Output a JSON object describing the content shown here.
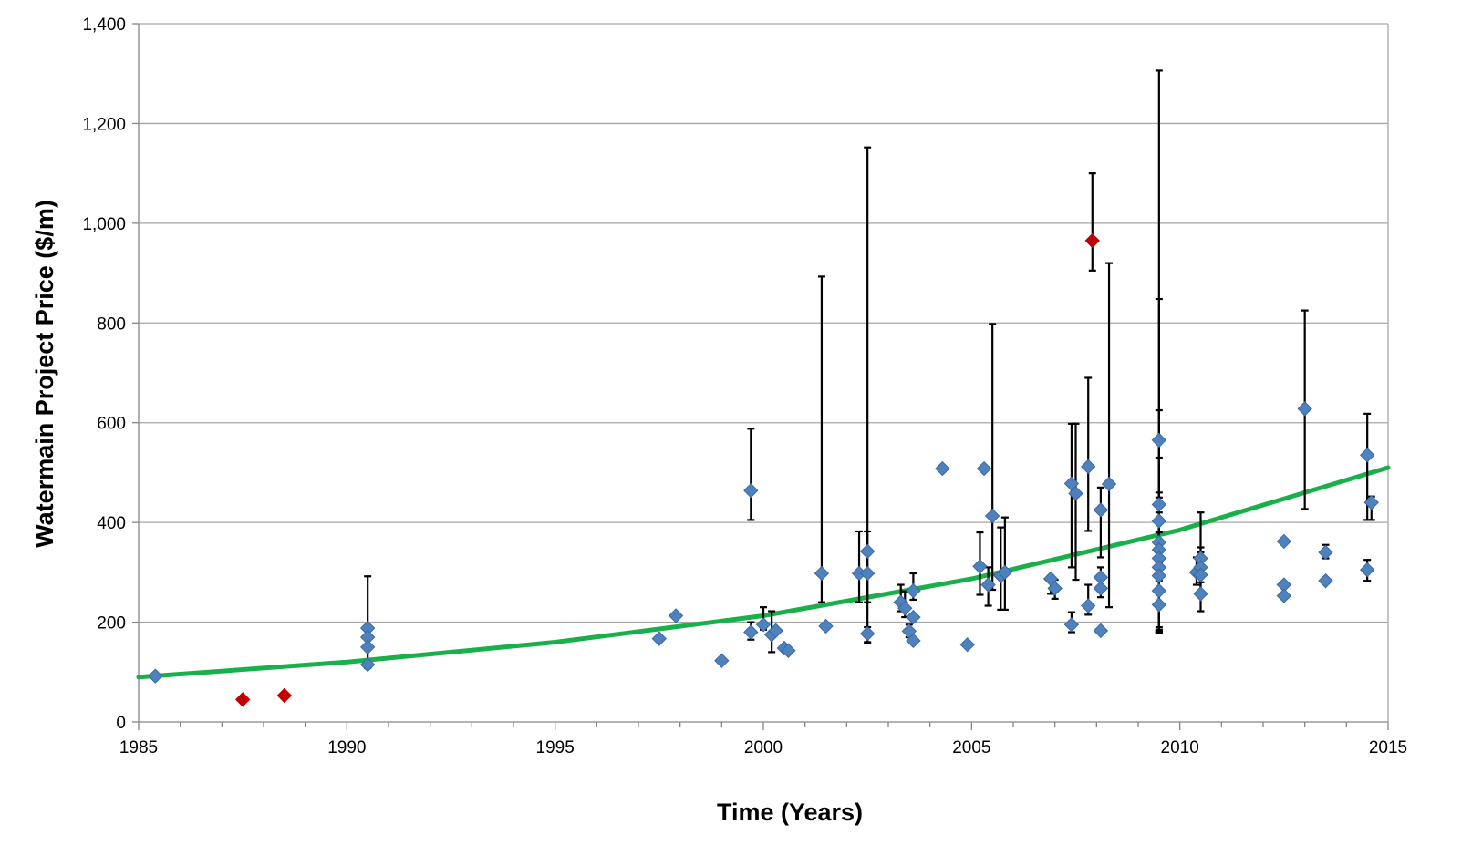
{
  "chart_data": {
    "type": "scatter",
    "title": "",
    "xlabel": "Time (Years)",
    "ylabel": "Watermain Project Price ($/m)",
    "xlim": [
      1985,
      2015
    ],
    "ylim": [
      0,
      1400
    ],
    "x_ticks": [
      1985,
      1990,
      1995,
      2000,
      2005,
      2010,
      2015
    ],
    "y_ticks": [
      0,
      200,
      400,
      600,
      800,
      1000,
      1200,
      1400
    ],
    "y_tick_labels": [
      "0",
      "200",
      "400",
      "600",
      "800",
      "1,000",
      "1,200",
      "1,400"
    ],
    "grid": "horizontal",
    "legend": "none",
    "colors": {
      "blue_points": "#4f81bd",
      "blue_edge": "#3a6aa6",
      "red_points": "#c00000",
      "trend_line": "#19b04a",
      "error_bars": "#000000",
      "grid": "#a6a6a6",
      "axis": "#868686"
    },
    "points": [
      {
        "x": 1985.4,
        "y": 92,
        "color": "blue"
      },
      {
        "x": 1987.5,
        "y": 45,
        "color": "red"
      },
      {
        "x": 1988.5,
        "y": 53,
        "color": "red"
      },
      {
        "x": 1990.5,
        "y": 188,
        "color": "blue"
      },
      {
        "x": 1990.5,
        "y": 170,
        "color": "blue"
      },
      {
        "x": 1990.5,
        "y": 150,
        "color": "blue"
      },
      {
        "x": 1990.5,
        "y": 115,
        "color": "blue",
        "err_low": 108,
        "err_high": 292
      },
      {
        "x": 1997.5,
        "y": 167,
        "color": "blue"
      },
      {
        "x": 1997.9,
        "y": 213,
        "color": "blue"
      },
      {
        "x": 1999.0,
        "y": 123,
        "color": "blue"
      },
      {
        "x": 1999.7,
        "y": 464,
        "color": "blue",
        "err_low": 405,
        "err_high": 588
      },
      {
        "x": 1999.7,
        "y": 180,
        "color": "blue",
        "err_low": 165,
        "err_high": 200
      },
      {
        "x": 2000.0,
        "y": 195,
        "color": "blue",
        "err_low": 185,
        "err_high": 230
      },
      {
        "x": 2000.2,
        "y": 175,
        "color": "blue",
        "err_low": 140,
        "err_high": 222
      },
      {
        "x": 2000.3,
        "y": 183,
        "color": "blue"
      },
      {
        "x": 2000.5,
        "y": 148,
        "color": "blue"
      },
      {
        "x": 2000.6,
        "y": 143,
        "color": "blue"
      },
      {
        "x": 2001.4,
        "y": 298,
        "color": "blue",
        "err_low": 240,
        "err_high": 893
      },
      {
        "x": 2001.5,
        "y": 192,
        "color": "blue"
      },
      {
        "x": 2002.3,
        "y": 298,
        "color": "blue",
        "err_low": 240,
        "err_high": 382
      },
      {
        "x": 2002.5,
        "y": 298,
        "color": "blue",
        "err_low": 240,
        "err_high": 382
      },
      {
        "x": 2002.5,
        "y": 342,
        "color": "blue",
        "err_low": 160,
        "err_high": 1152
      },
      {
        "x": 2002.5,
        "y": 177,
        "color": "blue",
        "err_low": 158,
        "err_high": 190
      },
      {
        "x": 2003.3,
        "y": 240,
        "color": "blue",
        "err_low": 222,
        "err_high": 275
      },
      {
        "x": 2003.4,
        "y": 228,
        "color": "blue",
        "err_low": 210,
        "err_high": 262
      },
      {
        "x": 2003.5,
        "y": 182,
        "color": "blue",
        "err_low": 170,
        "err_high": 195
      },
      {
        "x": 2003.6,
        "y": 263,
        "color": "blue",
        "err_low": 245,
        "err_high": 298
      },
      {
        "x": 2003.6,
        "y": 210,
        "color": "blue"
      },
      {
        "x": 2003.6,
        "y": 163,
        "color": "blue"
      },
      {
        "x": 2004.3,
        "y": 508,
        "color": "blue"
      },
      {
        "x": 2004.9,
        "y": 155,
        "color": "blue"
      },
      {
        "x": 2005.2,
        "y": 312,
        "color": "blue",
        "err_low": 255,
        "err_high": 380
      },
      {
        "x": 2005.3,
        "y": 508,
        "color": "blue"
      },
      {
        "x": 2005.4,
        "y": 275,
        "color": "blue",
        "err_low": 233,
        "err_high": 310
      },
      {
        "x": 2005.5,
        "y": 413,
        "color": "blue",
        "err_low": 265,
        "err_high": 798
      },
      {
        "x": 2005.7,
        "y": 293,
        "color": "blue",
        "err_low": 225,
        "err_high": 390
      },
      {
        "x": 2005.8,
        "y": 300,
        "color": "blue",
        "err_low": 225,
        "err_high": 410
      },
      {
        "x": 2006.9,
        "y": 287,
        "color": "blue",
        "err_low": 257,
        "err_high": 293
      },
      {
        "x": 2007.0,
        "y": 268,
        "color": "blue",
        "err_low": 247,
        "err_high": 285
      },
      {
        "x": 2007.4,
        "y": 478,
        "color": "blue",
        "err_low": 310,
        "err_high": 598
      },
      {
        "x": 2007.5,
        "y": 458,
        "color": "blue",
        "err_low": 285,
        "err_high": 598
      },
      {
        "x": 2007.4,
        "y": 195,
        "color": "blue",
        "err_low": 180,
        "err_high": 220
      },
      {
        "x": 2007.8,
        "y": 512,
        "color": "blue",
        "err_low": 383,
        "err_high": 690
      },
      {
        "x": 2007.8,
        "y": 233,
        "color": "blue",
        "err_low": 215,
        "err_high": 275
      },
      {
        "x": 2007.9,
        "y": 965,
        "color": "red",
        "err_low": 905,
        "err_high": 1100
      },
      {
        "x": 2008.1,
        "y": 425,
        "color": "blue",
        "err_low": 330,
        "err_high": 470
      },
      {
        "x": 2008.1,
        "y": 290,
        "color": "blue",
        "err_low": 250,
        "err_high": 310
      },
      {
        "x": 2008.1,
        "y": 268,
        "color": "blue"
      },
      {
        "x": 2008.1,
        "y": 183,
        "color": "blue"
      },
      {
        "x": 2008.3,
        "y": 477,
        "color": "blue",
        "err_low": 230,
        "err_high": 920
      },
      {
        "x": 2009.5,
        "y": 565,
        "color": "blue",
        "err_low": 450,
        "err_high": 1306
      },
      {
        "x": 2009.5,
        "y": 436,
        "color": "blue",
        "err_low": 320,
        "err_high": 848
      },
      {
        "x": 2009.5,
        "y": 403,
        "color": "blue",
        "err_low": 283,
        "err_high": 625
      },
      {
        "x": 2009.5,
        "y": 360,
        "color": "blue",
        "err_low": 190,
        "err_high": 530
      },
      {
        "x": 2009.5,
        "y": 345,
        "color": "blue",
        "err_low": 185,
        "err_high": 460
      },
      {
        "x": 2009.5,
        "y": 328,
        "color": "blue",
        "err_low": 183,
        "err_high": 440
      },
      {
        "x": 2009.5,
        "y": 310,
        "color": "blue",
        "err_low": 180,
        "err_high": 420
      },
      {
        "x": 2009.5,
        "y": 293,
        "color": "blue",
        "err_low": 180,
        "err_high": 380
      },
      {
        "x": 2009.5,
        "y": 263,
        "color": "blue",
        "err_low": 180,
        "err_high": 350
      },
      {
        "x": 2009.5,
        "y": 235,
        "color": "blue",
        "err_low": 178,
        "err_high": 320
      },
      {
        "x": 2010.4,
        "y": 300,
        "color": "blue",
        "err_low": 275,
        "err_high": 330
      },
      {
        "x": 2010.5,
        "y": 328,
        "color": "blue",
        "err_low": 300,
        "err_high": 420
      },
      {
        "x": 2010.5,
        "y": 310,
        "color": "blue",
        "err_low": 280,
        "err_high": 350
      },
      {
        "x": 2010.5,
        "y": 295,
        "color": "blue",
        "err_low": 260,
        "err_high": 340
      },
      {
        "x": 2010.5,
        "y": 257,
        "color": "blue",
        "err_low": 222,
        "err_high": 300
      },
      {
        "x": 2012.5,
        "y": 362,
        "color": "blue"
      },
      {
        "x": 2012.5,
        "y": 275,
        "color": "blue"
      },
      {
        "x": 2012.5,
        "y": 253,
        "color": "blue"
      },
      {
        "x": 2013.0,
        "y": 628,
        "color": "blue",
        "err_low": 427,
        "err_high": 825
      },
      {
        "x": 2013.5,
        "y": 340,
        "color": "blue",
        "err_low": 328,
        "err_high": 355
      },
      {
        "x": 2013.5,
        "y": 283,
        "color": "blue"
      },
      {
        "x": 2014.5,
        "y": 535,
        "color": "blue",
        "err_low": 405,
        "err_high": 618
      },
      {
        "x": 2014.6,
        "y": 440,
        "color": "blue",
        "err_low": 405,
        "err_high": 452
      },
      {
        "x": 2014.5,
        "y": 305,
        "color": "blue",
        "err_low": 283,
        "err_high": 325
      }
    ],
    "trend_line": {
      "type": "exponential",
      "points": [
        {
          "x": 1985,
          "y": 90
        },
        {
          "x": 1990,
          "y": 120
        },
        {
          "x": 1995,
          "y": 160
        },
        {
          "x": 2000,
          "y": 213
        },
        {
          "x": 2005,
          "y": 287
        },
        {
          "x": 2010,
          "y": 385
        },
        {
          "x": 2015,
          "y": 510
        }
      ]
    }
  }
}
